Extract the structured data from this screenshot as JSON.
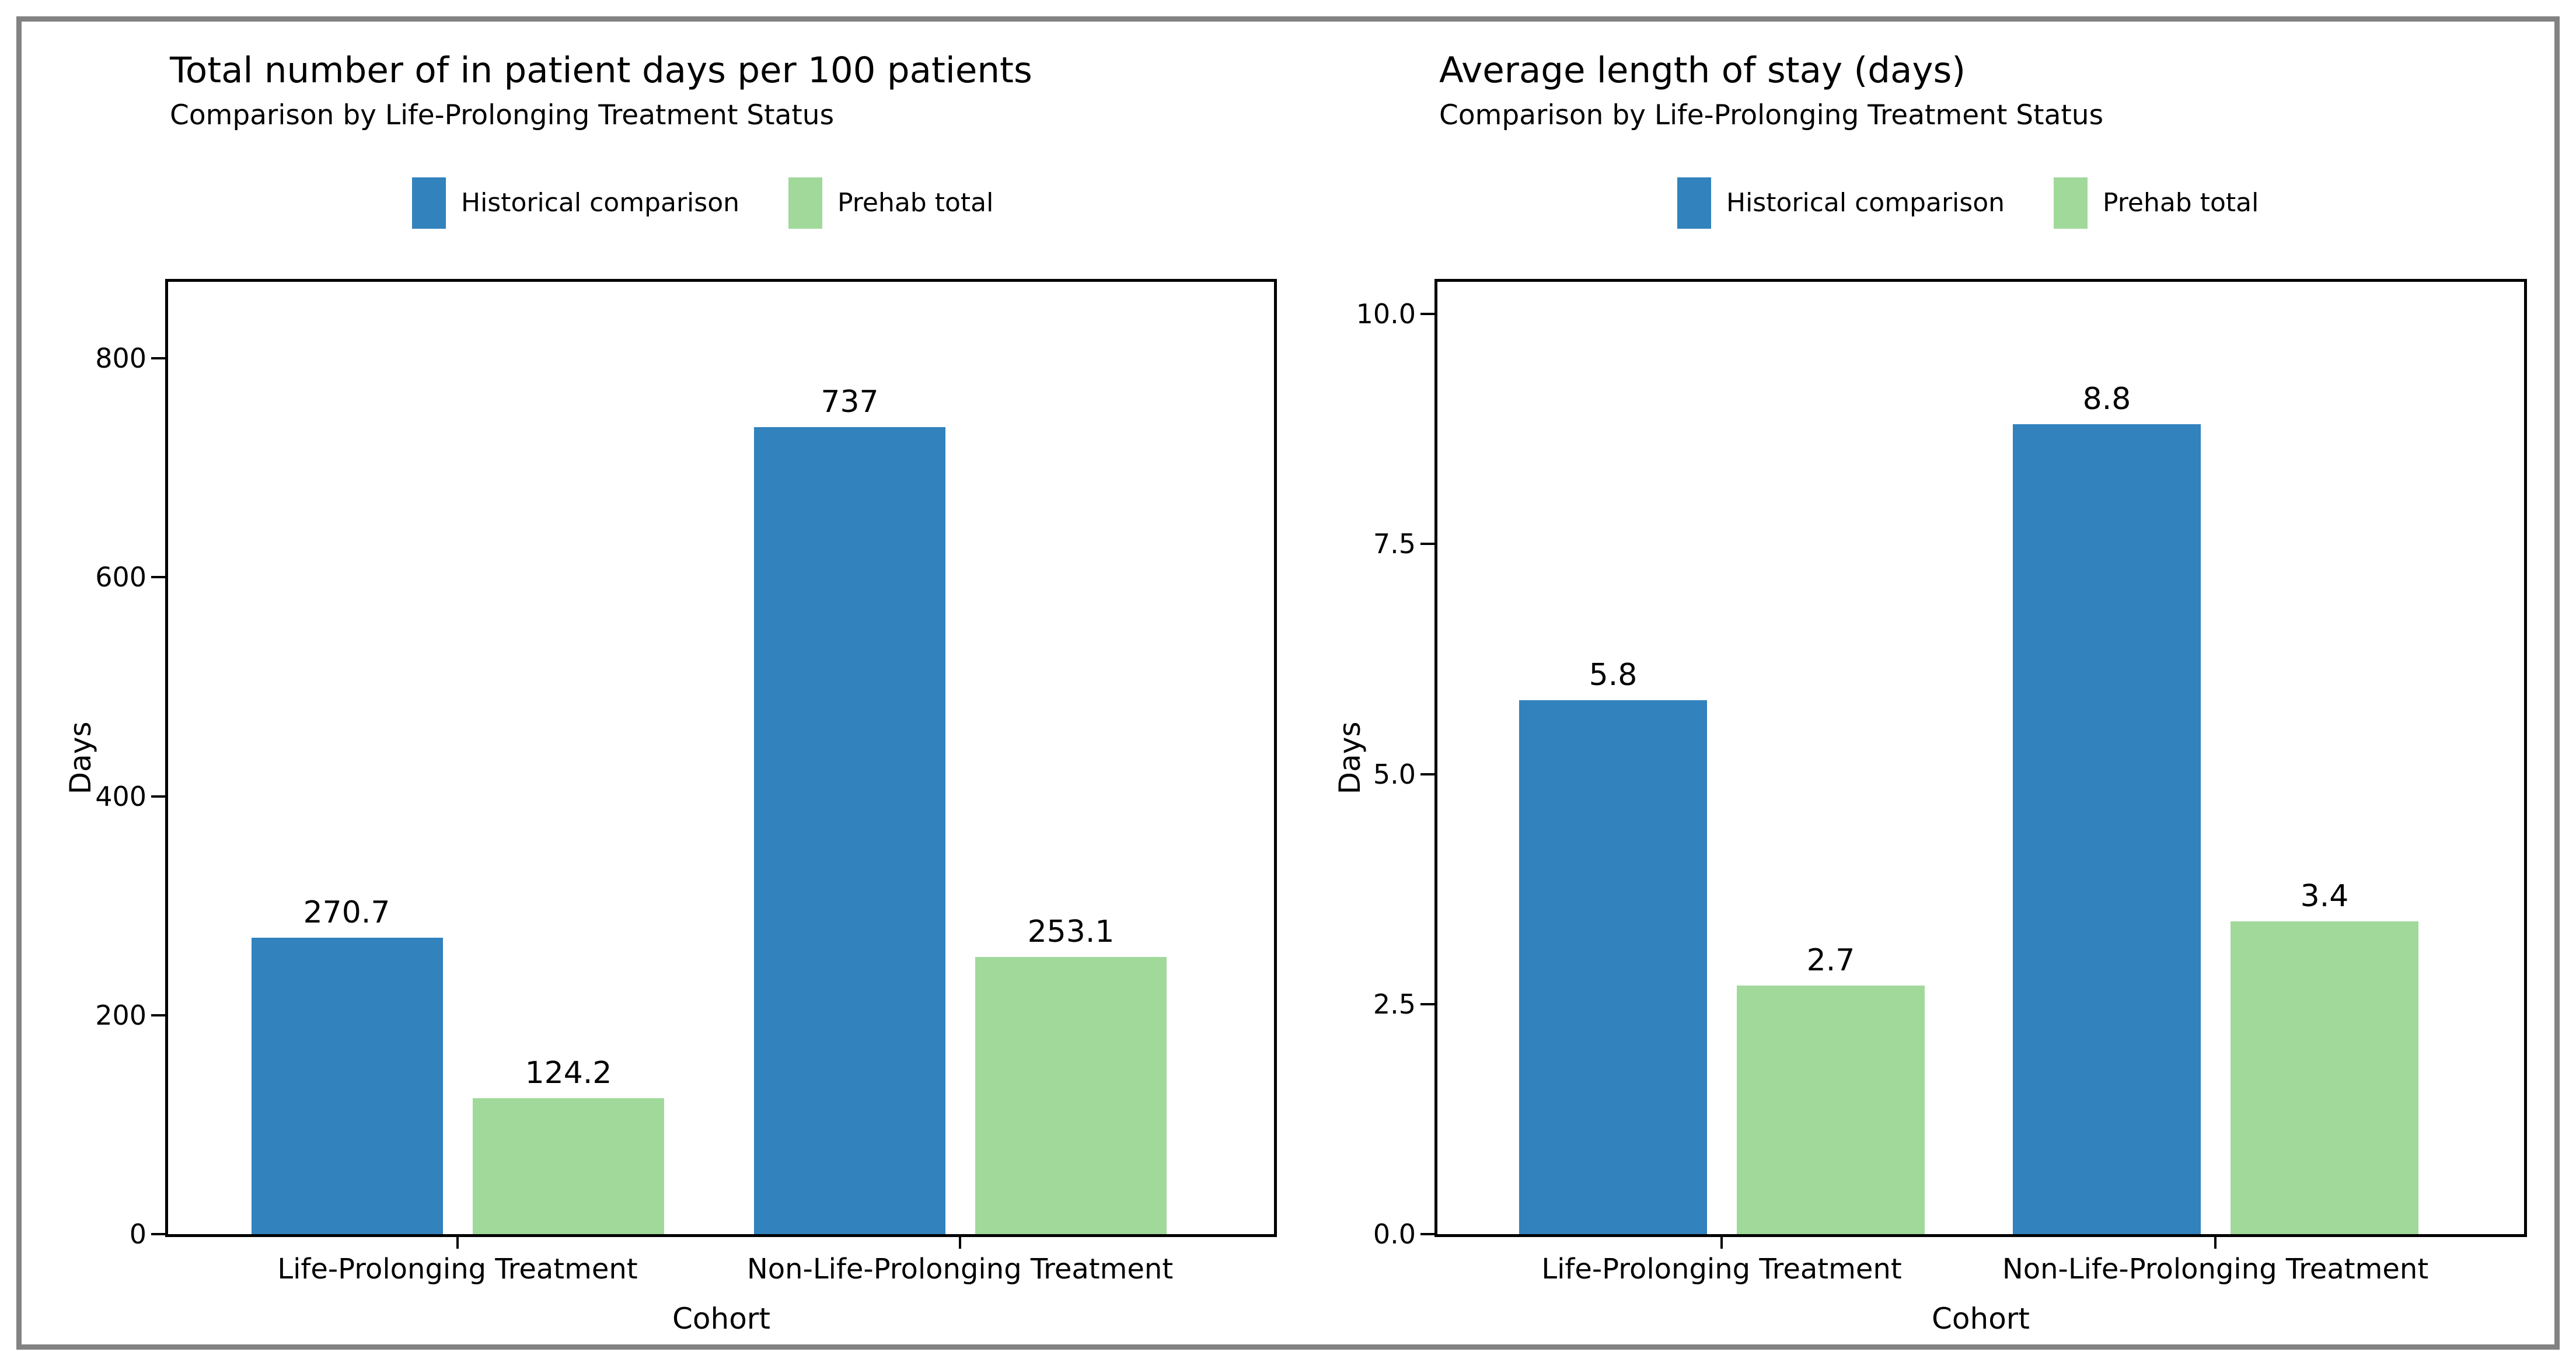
{
  "figure": {
    "background": "#ffffff",
    "border_color": "#828282",
    "text_color": "#000000",
    "spine_color": "#000000"
  },
  "chart_data": [
    {
      "type": "bar",
      "title": "Total number of in patient days per 100 patients",
      "subtitle": "Comparison by Life-Prolonging Treatment Status",
      "xlabel": "Cohort",
      "ylabel": "Days",
      "categories": [
        "Life-Prolonging Treatment",
        "Non-Life-Prolonging Treatment"
      ],
      "series": [
        {
          "name": "Historical comparison",
          "color": "#3182bd",
          "values": [
            270.7,
            737
          ],
          "value_labels": [
            "270.7",
            "737"
          ]
        },
        {
          "name": "Prehab total",
          "color": "#a1d99b",
          "values": [
            124.2,
            253.1
          ],
          "value_labels": [
            "124.2",
            "253.1"
          ]
        }
      ],
      "ylim": [
        0,
        870
      ],
      "yticks": [
        {
          "value": 0,
          "label": "0"
        },
        {
          "value": 200,
          "label": "200"
        },
        {
          "value": 400,
          "label": "400"
        },
        {
          "value": 600,
          "label": "600"
        },
        {
          "value": 800,
          "label": "800"
        }
      ],
      "grid": false,
      "legend_position": "top"
    },
    {
      "type": "bar",
      "title": "Average length of stay (days)",
      "subtitle": "Comparison by Life-Prolonging Treatment Status",
      "xlabel": "Cohort",
      "ylabel": "Days",
      "categories": [
        "Life-Prolonging Treatment",
        "Non-Life-Prolonging Treatment"
      ],
      "series": [
        {
          "name": "Historical comparison",
          "color": "#3182bd",
          "values": [
            5.8,
            8.8
          ],
          "value_labels": [
            "5.8",
            "8.8"
          ]
        },
        {
          "name": "Prehab total",
          "color": "#a1d99b",
          "values": [
            2.7,
            3.4
          ],
          "value_labels": [
            "2.7",
            "3.4"
          ]
        }
      ],
      "ylim": [
        0,
        10.35
      ],
      "yticks": [
        {
          "value": 0,
          "label": "0.0"
        },
        {
          "value": 2.5,
          "label": "2.5"
        },
        {
          "value": 5,
          "label": "5.0"
        },
        {
          "value": 7.5,
          "label": "7.5"
        },
        {
          "value": 10,
          "label": "10.0"
        }
      ],
      "grid": false,
      "legend_position": "top"
    }
  ]
}
